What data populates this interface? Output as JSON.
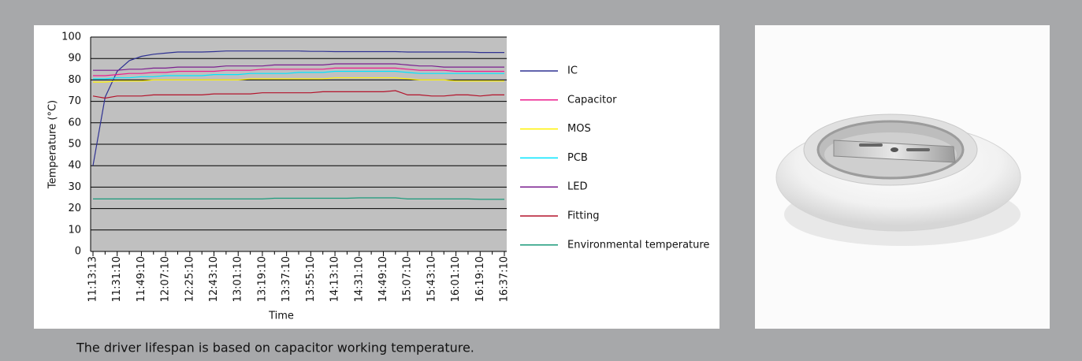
{
  "chart_data": {
    "type": "line",
    "x_label": "Time",
    "y_label": "Temperature (°C)",
    "categories": [
      "11:13:13",
      null,
      "11:31:10",
      null,
      "11:49:10",
      null,
      "12:07:10",
      null,
      "12:25:10",
      null,
      "12:43:10",
      null,
      "13:01:10",
      null,
      "13:19:10",
      null,
      "13:37:10",
      null,
      "13:55:10",
      null,
      "14:13:10",
      null,
      "14:31:10",
      null,
      "14:49:10",
      null,
      "15:07:10",
      null,
      "15:43:10",
      null,
      "16:01:10",
      null,
      "16:19:10",
      null,
      "16:37:10"
    ],
    "series": [
      {
        "name": "IC",
        "color": "#2e3192",
        "values": [
          40,
          72,
          84,
          89,
          91,
          92,
          92.5,
          93,
          93,
          93,
          93.2,
          93.5,
          93.5,
          93.5,
          93.5,
          93.5,
          93.5,
          93.5,
          93.3,
          93.3,
          93.2,
          93.2,
          93.2,
          93.2,
          93.2,
          93.2,
          93,
          93,
          93,
          93,
          93,
          93,
          92.8,
          92.8,
          92.8
        ]
      },
      {
        "name": "Capacitor",
        "color": "#ec1c8c",
        "values": [
          82,
          82,
          82.5,
          83,
          83,
          83.5,
          83.5,
          84,
          84,
          84,
          84,
          84.5,
          84.5,
          84.5,
          85,
          85,
          85,
          85,
          85,
          85,
          85.5,
          85.5,
          85.5,
          85.5,
          85.5,
          85.5,
          85,
          84.5,
          84.5,
          84.5,
          84,
          84,
          84,
          84,
          84
        ]
      },
      {
        "name": "MOS",
        "color": "#fff200",
        "values": [
          79,
          79,
          79.5,
          79.5,
          79.5,
          80,
          80,
          80,
          80,
          80,
          80,
          80,
          80,
          80.5,
          80.5,
          80.5,
          80.5,
          80.5,
          80.5,
          80.5,
          81,
          81,
          81,
          81,
          81,
          81,
          80.5,
          80,
          80,
          80,
          79.5,
          79.5,
          79.5,
          79.5,
          79.5
        ]
      },
      {
        "name": "PCB",
        "color": "#00e5ff",
        "values": [
          80.5,
          80.5,
          81,
          81,
          81.5,
          81.5,
          82,
          82,
          82,
          82,
          82.5,
          82.5,
          82.5,
          83,
          83,
          83,
          83,
          83.5,
          83.5,
          83.5,
          84,
          84,
          84,
          84,
          84,
          84,
          83.5,
          83,
          83,
          83,
          83,
          83,
          83,
          83,
          83
        ]
      },
      {
        "name": "LED",
        "color": "#7a1e8e",
        "values": [
          84.5,
          84.5,
          84.5,
          85,
          85,
          85.5,
          85.5,
          86,
          86,
          86,
          86,
          86.5,
          86.5,
          86.5,
          86.5,
          87,
          87,
          87,
          87,
          87,
          87.5,
          87.5,
          87.5,
          87.5,
          87.5,
          87.5,
          87,
          86.5,
          86.5,
          86,
          86,
          86,
          86,
          86,
          86
        ]
      },
      {
        "name": "Fitting",
        "color": "#b3132b",
        "values": [
          72.5,
          71.5,
          72.5,
          72.5,
          72.5,
          73,
          73,
          73,
          73,
          73,
          73.5,
          73.5,
          73.5,
          73.5,
          74,
          74,
          74,
          74,
          74,
          74.5,
          74.5,
          74.5,
          74.5,
          74.5,
          74.5,
          75,
          73,
          73,
          72.5,
          72.5,
          73,
          73,
          72.5,
          73,
          73
        ]
      },
      {
        "name": "Environmental temperature",
        "color": "#1a9a7a",
        "values": [
          24.5,
          24.5,
          24.5,
          24.5,
          24.5,
          24.5,
          24.5,
          24.5,
          24.5,
          24.5,
          24.5,
          24.5,
          24.5,
          24.5,
          24.5,
          24.8,
          24.8,
          24.8,
          24.8,
          24.8,
          24.8,
          24.8,
          25,
          25,
          25,
          25,
          24.5,
          24.5,
          24.5,
          24.5,
          24.5,
          24.5,
          24.3,
          24.3,
          24.3
        ]
      }
    ],
    "ylim": [
      0,
      100
    ],
    "yticks": [
      0,
      10,
      20,
      30,
      40,
      50,
      60,
      70,
      80,
      90,
      100
    ],
    "grid": true,
    "legend": "right"
  },
  "caption": "The driver lifespan is based on capacitor working temperature."
}
